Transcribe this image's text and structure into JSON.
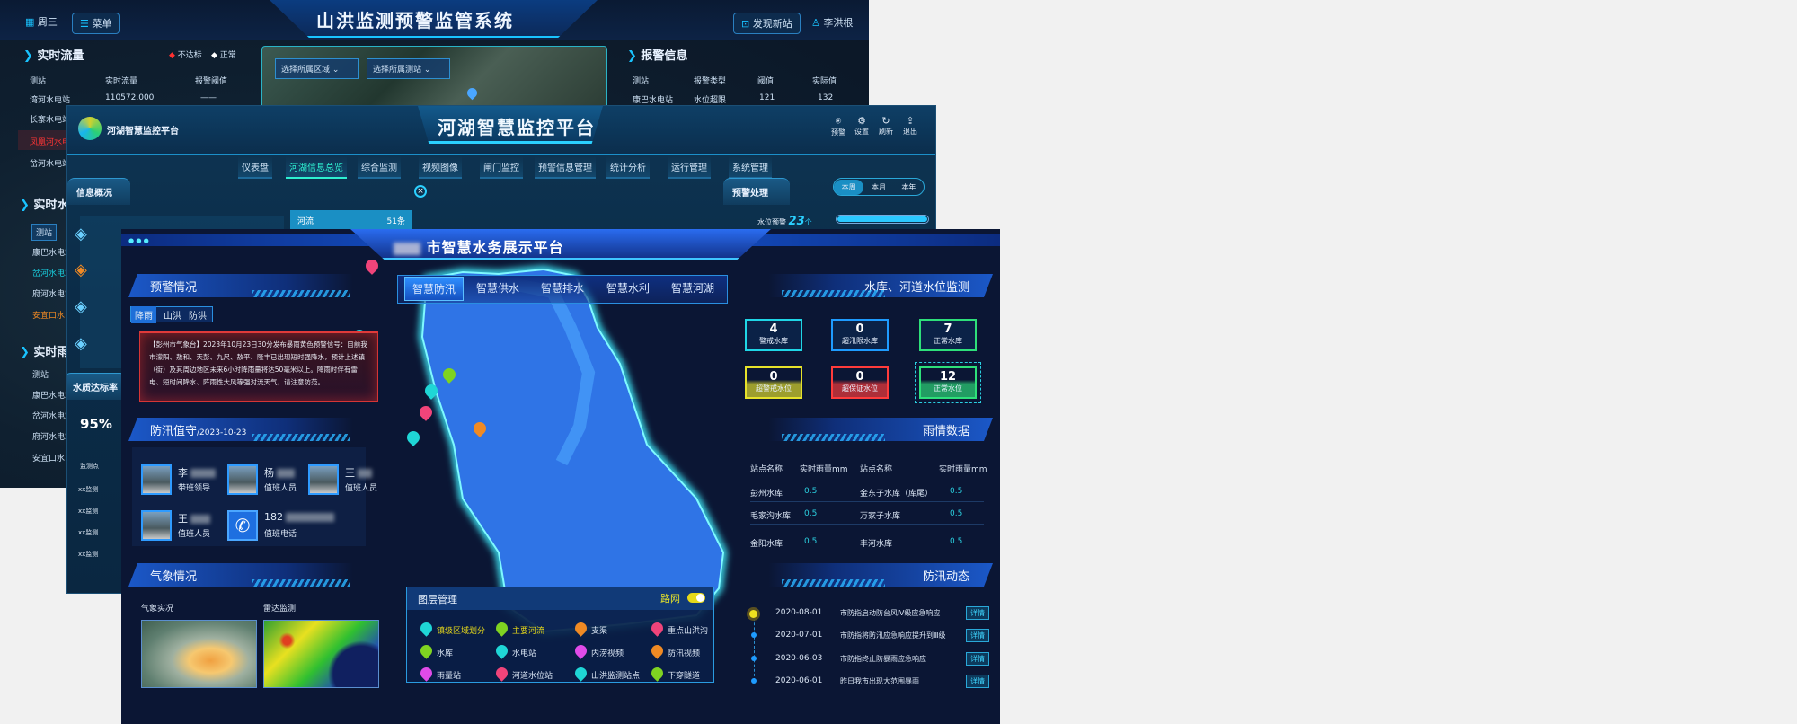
{
  "flood_system": {
    "title": "山洪监测预警监管系统",
    "weekday": "周三",
    "menu_label": "菜单",
    "discover_label": "发现新站",
    "user_name": "李洪根",
    "dropdowns": {
      "region_placeholder": "选择所属区域",
      "station_placeholder": "选择所属测站"
    },
    "flow_panel": {
      "title": "实时流量",
      "legend": [
        "不达标",
        "正常"
      ],
      "headers": [
        "测站",
        "实时流量",
        "报警阈值"
      ],
      "rows": [
        {
          "station": "湾河水电站",
          "flow": "110572.000",
          "threshold": "——"
        },
        {
          "station": "长寨水电站"
        },
        {
          "station": "凤凰河水电"
        },
        {
          "station": "岔河水电站"
        }
      ]
    },
    "alarm_panel": {
      "title": "报警信息",
      "headers": [
        "测站",
        "报警类型",
        "阈值",
        "实际值"
      ],
      "rows": [
        {
          "station": "康巴水电站",
          "type": "水位超限",
          "threshold": "121",
          "actual": "132"
        }
      ]
    },
    "water_panel": {
      "title": "实时水",
      "header": "测站",
      "rows": [
        "康巴水电站",
        "岔河水电站",
        "府河水电站",
        "安宜口水电"
      ]
    },
    "rain_panel": {
      "title": "实时雨",
      "header": "测站",
      "rows": [
        "康巴水电站",
        "岔河水电站",
        "府河水电站",
        "安宜口水电"
      ]
    }
  },
  "river_platform": {
    "logo_text": "河湖智慧监控平台",
    "title": "河湖智慧监控平台",
    "actions": [
      "预警",
      "设置",
      "刷新",
      "退出"
    ],
    "nav": [
      "仪表盘",
      "河湖信息总览",
      "综合监测",
      "视频图像",
      "闸门监控",
      "预警信息管理",
      "统计分析",
      "运行管理",
      "系统管理"
    ],
    "nav_active": "河湖信息总览",
    "info_title": "信息概况",
    "popup": {
      "label": "河流",
      "count": "51条",
      "close": "×"
    },
    "warning": {
      "title": "预警处理",
      "periods": [
        "本周",
        "本月",
        "本年"
      ],
      "item_label": "水位预警",
      "item_value": "23",
      "item_unit": "个",
      "progress": 1.0
    },
    "quality": {
      "title": "水质达标率",
      "value": "95%",
      "header": "监测点",
      "rows": [
        "xx监测",
        "xx监测",
        "xx监测",
        "xx监测"
      ]
    }
  },
  "water_platform": {
    "title": "市智慧水务展示平台",
    "tabs": [
      "智慧防汛",
      "智慧供水",
      "智慧排水",
      "智慧水利",
      "智慧河湖"
    ],
    "active_tab": "智慧防汛",
    "warning": {
      "title": "预警情况",
      "subtabs": [
        "降雨",
        "山洪",
        "防洪"
      ],
      "active_subtab": "降雨",
      "alert_text": "【彭州市气象台】2023年10月23日30分发布暴雨黄色预警信号：目前我市濛阳、敖和、天彭、九尺、敖平、隆丰已出现短时强降水，预计上述镇（街）及其周边地区未来6小时降雨量将达50毫米以上。降雨时伴有雷电、短时间降水、阵雨性大风等强对流天气，请注意防范。"
    },
    "duty": {
      "title": "防汛值守",
      "date": "/2023-10-23",
      "people": [
        {
          "name": "李",
          "role": "带班领导"
        },
        {
          "name": "杨",
          "role": "值班人员"
        },
        {
          "name": "王",
          "role": "值班人员"
        },
        {
          "name": "王",
          "role": "值班人员"
        }
      ],
      "phone": {
        "number": "182",
        "label": "值班电话"
      }
    },
    "weather": {
      "title": "气象情况",
      "live_label": "气象实况",
      "radar_label": "雷达监测"
    },
    "layers": {
      "title": "图层管理",
      "road_label": "路网",
      "road_on": true,
      "items": [
        {
          "label": "镇级区域划分",
          "color": "#1fd6d6",
          "active": true
        },
        {
          "label": "主要河流",
          "color": "#7fd321",
          "active": true
        },
        {
          "label": "支渠",
          "color": "#f08a24"
        },
        {
          "label": "重点山洪沟",
          "color": "#f0447a"
        },
        {
          "label": "水库",
          "color": "#7fd321"
        },
        {
          "label": "水电站",
          "color": "#1fd6d6"
        },
        {
          "label": "内涝视频",
          "color": "#e04be8"
        },
        {
          "label": "防汛视频",
          "color": "#f08a24"
        },
        {
          "label": "雨量站",
          "color": "#e04be8"
        },
        {
          "label": "河道水位站",
          "color": "#f0447a"
        },
        {
          "label": "山洪监测站点",
          "color": "#1fd6d6"
        },
        {
          "label": "下穿隧道",
          "color": "#7fd321"
        }
      ]
    },
    "levels": {
      "title": "水库、河道水位监测",
      "cards": [
        {
          "value": "4",
          "label": "警戒水库",
          "color": "#1fd6e6"
        },
        {
          "value": "0",
          "label": "超汛限水库",
          "color": "#1e9bff"
        },
        {
          "value": "7",
          "label": "正常水库",
          "color": "#2ee07a"
        },
        {
          "value": "0",
          "label": "超警戒水位",
          "color": "#e6e22a"
        },
        {
          "value": "0",
          "label": "超保证水位",
          "color": "#ff3b3b"
        },
        {
          "value": "12",
          "label": "正常水位",
          "color": "#2ee07a"
        }
      ]
    },
    "rain": {
      "title": "雨情数据",
      "headers": [
        "站点名称",
        "实时雨量mm",
        "站点名称",
        "实时雨量mm"
      ],
      "rows": [
        [
          "彭州水库",
          "0.5",
          "金东子水库（库尾）",
          "0.5"
        ],
        [
          "毛家沟水库",
          "0.5",
          "万家子水库",
          "0.5"
        ],
        [
          "金阳水库",
          "0.5",
          "丰河水库",
          "0.5"
        ]
      ]
    },
    "dynamics": {
      "title": "防汛动态",
      "button_label": "详情",
      "items": [
        {
          "date": "2020-08-01",
          "text": "市防指启动防台风Ⅳ级应急响应"
        },
        {
          "date": "2020-07-01",
          "text": "市防指将防汛应急响应提升到Ⅲ级"
        },
        {
          "date": "2020-06-03",
          "text": "市防指终止防暴雨应急响应"
        },
        {
          "date": "2020-06-01",
          "text": "昨日我市出现大范围暴雨"
        }
      ]
    }
  }
}
